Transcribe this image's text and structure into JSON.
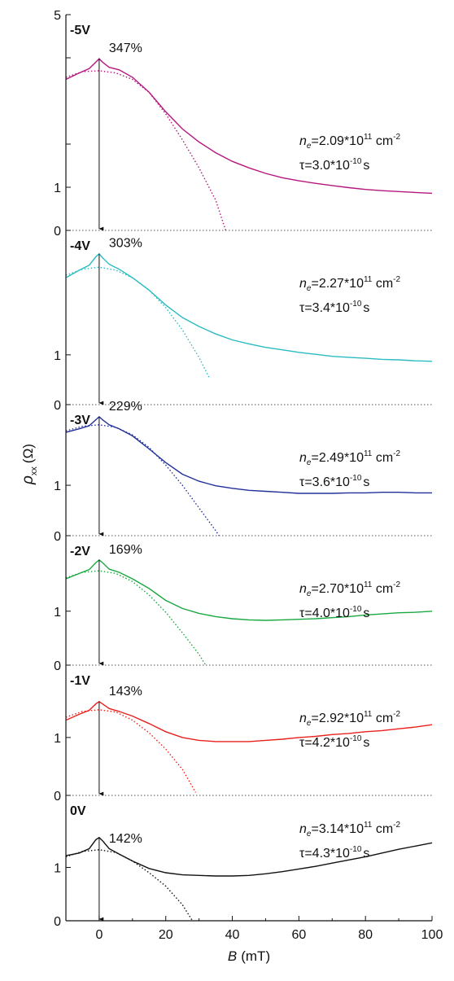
{
  "chart_data": {
    "type": "line",
    "stacked_panels": true,
    "xlabel": {
      "symbol": "B",
      "unit": "(mT)"
    },
    "ylabel": {
      "symbol": "ρ",
      "subscript": "xx",
      "unit": "(Ω)"
    },
    "xlim": [
      -10,
      100
    ],
    "x_ticks": [
      0,
      20,
      40,
      60,
      80,
      100
    ],
    "top_tick_label": "5",
    "panels": [
      {
        "voltage": "-5V",
        "peak_label": "347%",
        "color": "#b5177f",
        "ylim": [
          0,
          5
        ],
        "y_tick_labels": [
          "0",
          "1"
        ],
        "density_value": "=2.09*10",
        "density_exp": "11",
        "density_unit": " cm",
        "density_unit_exp": "-2",
        "tau_value": "τ=3.0*10",
        "tau_exp": "-10",
        "tau_unit": "s",
        "measured": [
          [
            -10,
            3.5
          ],
          [
            -6,
            3.65
          ],
          [
            -3,
            3.75
          ],
          [
            -1,
            3.9
          ],
          [
            0,
            3.98
          ],
          [
            1,
            3.9
          ],
          [
            3,
            3.78
          ],
          [
            6,
            3.72
          ],
          [
            10,
            3.55
          ],
          [
            15,
            3.2
          ],
          [
            20,
            2.75
          ],
          [
            25,
            2.35
          ],
          [
            30,
            2.05
          ],
          [
            35,
            1.8
          ],
          [
            40,
            1.6
          ],
          [
            45,
            1.45
          ],
          [
            50,
            1.32
          ],
          [
            55,
            1.22
          ],
          [
            60,
            1.15
          ],
          [
            65,
            1.09
          ],
          [
            70,
            1.04
          ],
          [
            75,
            0.99
          ],
          [
            80,
            0.95
          ],
          [
            85,
            0.92
          ],
          [
            90,
            0.9
          ],
          [
            95,
            0.88
          ],
          [
            100,
            0.86
          ]
        ],
        "fit": [
          [
            -10,
            3.55
          ],
          [
            -5,
            3.68
          ],
          [
            0,
            3.7
          ],
          [
            5,
            3.65
          ],
          [
            10,
            3.5
          ],
          [
            15,
            3.2
          ],
          [
            20,
            2.7
          ],
          [
            25,
            2.1
          ],
          [
            30,
            1.45
          ],
          [
            35,
            0.7
          ],
          [
            38,
            0.0
          ]
        ]
      },
      {
        "voltage": "-4V",
        "peak_label": "303%",
        "color": "#2bbcc1",
        "ylim": [
          0,
          3.5
        ],
        "y_tick_labels": [
          "0",
          "1"
        ],
        "density_value": "=2.27*10",
        "density_exp": "11",
        "density_unit": " cm",
        "density_unit_exp": "-2",
        "tau_value": "τ=3.4*10",
        "tau_exp": "-10",
        "tau_unit": "s",
        "measured": [
          [
            -10,
            2.55
          ],
          [
            -6,
            2.7
          ],
          [
            -3,
            2.8
          ],
          [
            -1,
            2.97
          ],
          [
            0,
            3.03
          ],
          [
            1,
            2.95
          ],
          [
            3,
            2.82
          ],
          [
            6,
            2.72
          ],
          [
            10,
            2.55
          ],
          [
            15,
            2.3
          ],
          [
            20,
            2.0
          ],
          [
            25,
            1.75
          ],
          [
            30,
            1.57
          ],
          [
            35,
            1.42
          ],
          [
            40,
            1.3
          ],
          [
            45,
            1.22
          ],
          [
            50,
            1.15
          ],
          [
            55,
            1.1
          ],
          [
            60,
            1.05
          ],
          [
            65,
            1.01
          ],
          [
            70,
            0.97
          ],
          [
            75,
            0.95
          ],
          [
            80,
            0.93
          ],
          [
            85,
            0.91
          ],
          [
            90,
            0.9
          ],
          [
            95,
            0.88
          ],
          [
            100,
            0.87
          ]
        ],
        "fit": [
          [
            -10,
            2.6
          ],
          [
            -5,
            2.72
          ],
          [
            0,
            2.76
          ],
          [
            5,
            2.7
          ],
          [
            10,
            2.55
          ],
          [
            15,
            2.3
          ],
          [
            20,
            1.95
          ],
          [
            25,
            1.5
          ],
          [
            30,
            0.95
          ],
          [
            33,
            0.55
          ]
        ]
      },
      {
        "voltage": "-3V",
        "peak_label": "229%",
        "color": "#22309a",
        "ylim": [
          0,
          2.6
        ],
        "y_tick_labels": [
          "0",
          "1"
        ],
        "density_value": "=2.49*10",
        "density_exp": "11",
        "density_unit": " cm",
        "density_unit_exp": "-2",
        "tau_value": "τ=3.6*10",
        "tau_exp": "-10",
        "tau_unit": "s",
        "measured": [
          [
            -10,
            2.05
          ],
          [
            -6,
            2.12
          ],
          [
            -3,
            2.18
          ],
          [
            -1,
            2.3
          ],
          [
            0,
            2.36
          ],
          [
            1,
            2.3
          ],
          [
            3,
            2.2
          ],
          [
            6,
            2.12
          ],
          [
            10,
            1.98
          ],
          [
            15,
            1.72
          ],
          [
            20,
            1.45
          ],
          [
            25,
            1.22
          ],
          [
            30,
            1.08
          ],
          [
            35,
            0.99
          ],
          [
            40,
            0.94
          ],
          [
            45,
            0.9
          ],
          [
            50,
            0.88
          ],
          [
            55,
            0.86
          ],
          [
            60,
            0.84
          ],
          [
            65,
            0.84
          ],
          [
            70,
            0.84
          ],
          [
            75,
            0.85
          ],
          [
            80,
            0.85
          ],
          [
            85,
            0.86
          ],
          [
            90,
            0.86
          ],
          [
            95,
            0.85
          ],
          [
            100,
            0.85
          ]
        ],
        "fit": [
          [
            -10,
            2.08
          ],
          [
            -5,
            2.17
          ],
          [
            0,
            2.2
          ],
          [
            5,
            2.15
          ],
          [
            10,
            2.0
          ],
          [
            15,
            1.75
          ],
          [
            20,
            1.4
          ],
          [
            25,
            1.0
          ],
          [
            30,
            0.55
          ],
          [
            35,
            0.1
          ],
          [
            36,
            0.0
          ]
        ]
      },
      {
        "voltage": "-2V",
        "peak_label": "169%",
        "color": "#1aa840",
        "ylim": [
          0,
          2.4
        ],
        "y_tick_labels": [
          "0",
          "1"
        ],
        "density_value": "=2.70*10",
        "density_exp": "11",
        "density_unit": " cm",
        "density_unit_exp": "-2",
        "tau_value": "τ=4.0*10",
        "tau_exp": "-10",
        "tau_unit": "s",
        "measured": [
          [
            -10,
            1.6
          ],
          [
            -6,
            1.7
          ],
          [
            -3,
            1.77
          ],
          [
            -1,
            1.9
          ],
          [
            0,
            1.95
          ],
          [
            1,
            1.9
          ],
          [
            3,
            1.78
          ],
          [
            6,
            1.72
          ],
          [
            10,
            1.6
          ],
          [
            15,
            1.42
          ],
          [
            20,
            1.2
          ],
          [
            25,
            1.05
          ],
          [
            30,
            0.96
          ],
          [
            35,
            0.9
          ],
          [
            40,
            0.86
          ],
          [
            45,
            0.84
          ],
          [
            50,
            0.83
          ],
          [
            55,
            0.84
          ],
          [
            60,
            0.85
          ],
          [
            65,
            0.86
          ],
          [
            70,
            0.88
          ],
          [
            75,
            0.9
          ],
          [
            80,
            0.93
          ],
          [
            85,
            0.95
          ],
          [
            90,
            0.97
          ],
          [
            95,
            0.98
          ],
          [
            100,
            1.0
          ]
        ],
        "fit": [
          [
            -10,
            1.62
          ],
          [
            -5,
            1.72
          ],
          [
            0,
            1.75
          ],
          [
            5,
            1.7
          ],
          [
            10,
            1.55
          ],
          [
            15,
            1.3
          ],
          [
            20,
            0.98
          ],
          [
            25,
            0.6
          ],
          [
            30,
            0.2
          ],
          [
            32,
            0.0
          ]
        ]
      },
      {
        "voltage": "-1V",
        "peak_label": "143%",
        "color": "#e8211c",
        "ylim": [
          0,
          2.25
        ],
        "y_tick_labels": [
          "0",
          "1"
        ],
        "density_value": "=2.92*10",
        "density_exp": "11",
        "density_unit": " cm",
        "density_unit_exp": "-2",
        "tau_value": "τ=4.2*10",
        "tau_exp": "-10",
        "tau_unit": "s",
        "measured": [
          [
            -10,
            1.3
          ],
          [
            -6,
            1.4
          ],
          [
            -3,
            1.47
          ],
          [
            -1,
            1.58
          ],
          [
            0,
            1.62
          ],
          [
            1,
            1.58
          ],
          [
            3,
            1.5
          ],
          [
            6,
            1.45
          ],
          [
            10,
            1.37
          ],
          [
            15,
            1.24
          ],
          [
            20,
            1.1
          ],
          [
            25,
            1.0
          ],
          [
            30,
            0.95
          ],
          [
            35,
            0.93
          ],
          [
            40,
            0.93
          ],
          [
            45,
            0.93
          ],
          [
            50,
            0.95
          ],
          [
            55,
            0.97
          ],
          [
            60,
            1.0
          ],
          [
            65,
            1.02
          ],
          [
            70,
            1.05
          ],
          [
            75,
            1.07
          ],
          [
            80,
            1.1
          ],
          [
            85,
            1.12
          ],
          [
            90,
            1.15
          ],
          [
            95,
            1.18
          ],
          [
            100,
            1.22
          ]
        ],
        "fit": [
          [
            -10,
            1.35
          ],
          [
            -5,
            1.45
          ],
          [
            0,
            1.48
          ],
          [
            5,
            1.44
          ],
          [
            10,
            1.3
          ],
          [
            15,
            1.08
          ],
          [
            20,
            0.8
          ],
          [
            25,
            0.45
          ],
          [
            29,
            0.05
          ]
        ]
      },
      {
        "voltage": "0V",
        "peak_label": "142%",
        "color": "#111111",
        "ylim": [
          0,
          2.35
        ],
        "y_tick_labels": [
          "0",
          "1"
        ],
        "density_value": "=3.14*10",
        "density_exp": "11",
        "density_unit": " cm",
        "density_unit_exp": "-2",
        "tau_value": "τ=4.3*10",
        "tau_exp": "-10",
        "tau_unit": "s",
        "measured": [
          [
            -10,
            1.22
          ],
          [
            -6,
            1.27
          ],
          [
            -3,
            1.35
          ],
          [
            -1,
            1.52
          ],
          [
            0,
            1.56
          ],
          [
            1,
            1.5
          ],
          [
            3,
            1.35
          ],
          [
            6,
            1.25
          ],
          [
            10,
            1.12
          ],
          [
            15,
            0.98
          ],
          [
            20,
            0.9
          ],
          [
            25,
            0.86
          ],
          [
            30,
            0.85
          ],
          [
            35,
            0.84
          ],
          [
            40,
            0.84
          ],
          [
            45,
            0.85
          ],
          [
            50,
            0.88
          ],
          [
            55,
            0.92
          ],
          [
            60,
            0.97
          ],
          [
            65,
            1.02
          ],
          [
            70,
            1.08
          ],
          [
            75,
            1.14
          ],
          [
            80,
            1.2
          ],
          [
            85,
            1.27
          ],
          [
            90,
            1.34
          ],
          [
            95,
            1.4
          ],
          [
            100,
            1.46
          ]
        ],
        "fit": [
          [
            -10,
            1.2
          ],
          [
            -5,
            1.3
          ],
          [
            0,
            1.33
          ],
          [
            5,
            1.28
          ],
          [
            10,
            1.12
          ],
          [
            15,
            0.9
          ],
          [
            20,
            0.65
          ],
          [
            25,
            0.3
          ],
          [
            28,
            0.0
          ]
        ]
      }
    ]
  }
}
